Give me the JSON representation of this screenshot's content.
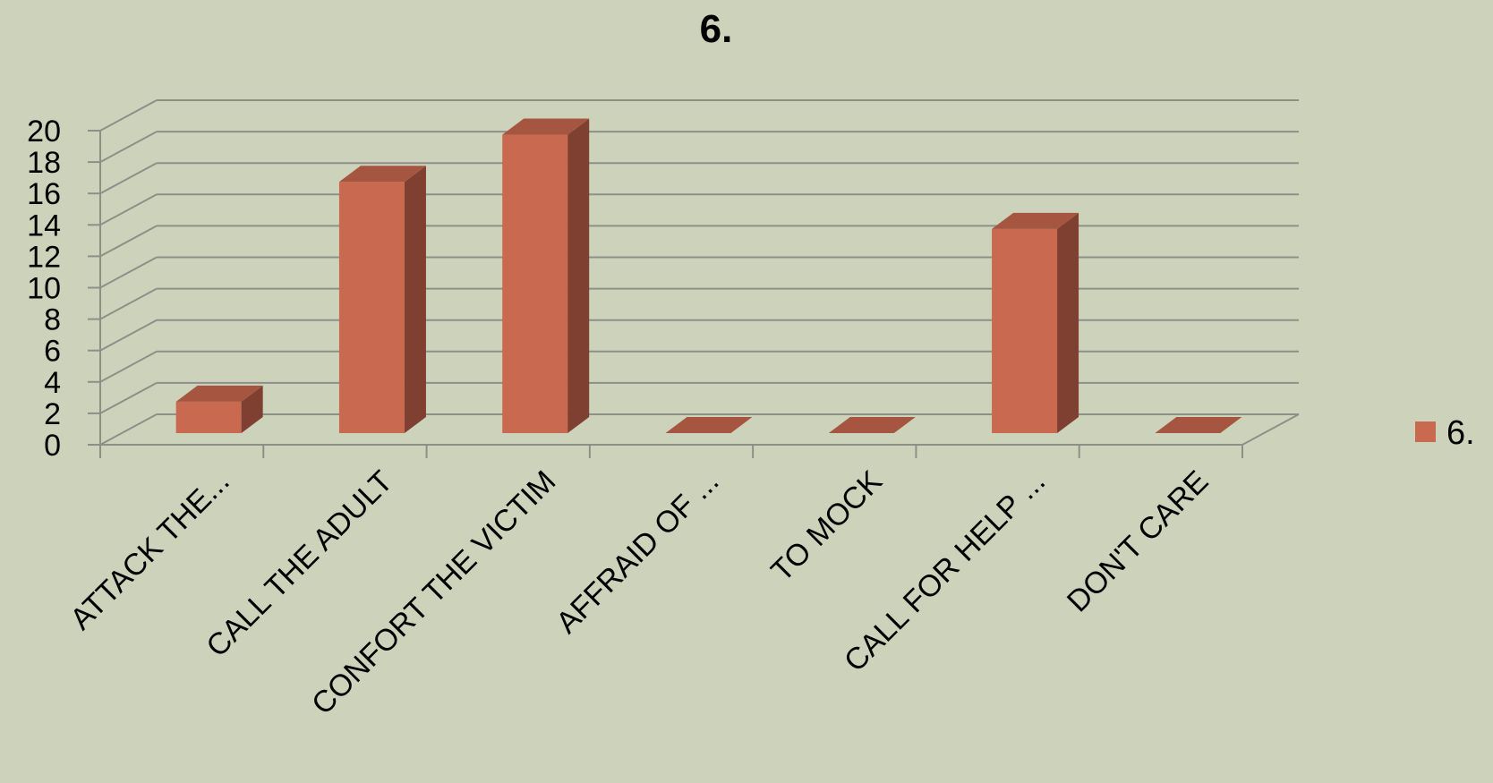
{
  "chart_data": {
    "type": "bar",
    "title": "6.",
    "categories": [
      "ATTACK THE...",
      "CALL THE ADULT",
      "CONFORT THE VICTIM",
      "AFFRAID OF ...",
      "TO MOCK",
      "CALL FOR HELP ...",
      "DON'T CARE"
    ],
    "series": [
      {
        "name": "6.",
        "values": [
          2,
          16,
          19,
          0,
          0,
          13,
          0
        ]
      }
    ],
    "y_ticks": [
      "0",
      "2",
      "4",
      "6",
      "8",
      "10",
      "12",
      "14",
      "16",
      "18",
      "20"
    ],
    "ylim": [
      0,
      20
    ],
    "grid": true,
    "legend": "right",
    "three_d": true,
    "colors": {
      "background": "#cdd3bb",
      "bar_front": "#c96a50",
      "bar_top": "#a65640",
      "bar_side": "#7f3f31",
      "grid": "#8d9087",
      "axis": "#8d9087"
    }
  }
}
